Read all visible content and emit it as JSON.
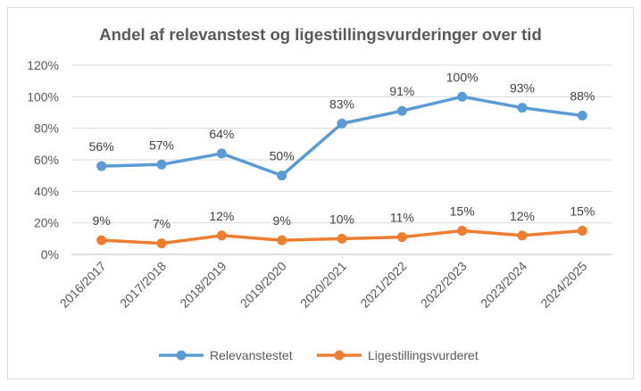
{
  "chart_data": {
    "type": "line",
    "title": "Andel af relevanstest og ligestillingsvurderinger over tid",
    "categories": [
      "2016/2017",
      "2017/2018",
      "2018/2019",
      "2019/2020",
      "2020/2021",
      "2021/2022",
      "2022/2023",
      "2023/2024",
      "2024/2025"
    ],
    "series": [
      {
        "name": "Relevanstestet",
        "color": "#5B9BD5",
        "values": [
          56,
          57,
          64,
          50,
          83,
          91,
          100,
          93,
          88
        ],
        "labels": [
          "56%",
          "57%",
          "64%",
          "50%",
          "83%",
          "91%",
          "100%",
          "93%",
          "88%"
        ]
      },
      {
        "name": "Ligestillingsvurderet",
        "color": "#ED7D31",
        "values": [
          9,
          7,
          12,
          9,
          10,
          11,
          15,
          12,
          15
        ],
        "labels": [
          "9%",
          "7%",
          "12%",
          "9%",
          "10%",
          "11%",
          "15%",
          "12%",
          "15%"
        ]
      }
    ],
    "yticks": [
      "0%",
      "20%",
      "40%",
      "60%",
      "80%",
      "100%",
      "120%"
    ],
    "ylim": [
      0,
      120
    ],
    "grid": true,
    "legend": "bottom",
    "xlabel": "",
    "ylabel": ""
  }
}
